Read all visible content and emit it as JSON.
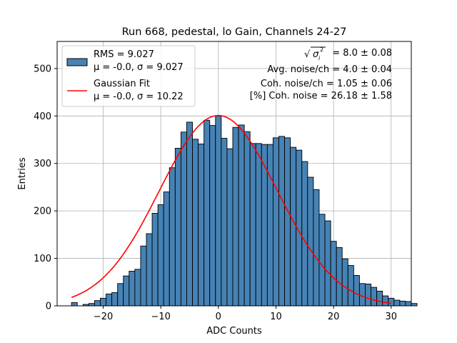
{
  "chart_data": {
    "type": "bar",
    "title": "Run 668, pedestal, lo Gain, Channels 24-27",
    "xlabel": "ADC Counts",
    "ylabel": "Entries",
    "xlim": [
      -28,
      33.5
    ],
    "ylim": [
      0,
      557
    ],
    "xticks": [
      -20,
      -10,
      0,
      10,
      20,
      30
    ],
    "yticks": [
      0,
      100,
      200,
      300,
      400,
      500
    ],
    "grid": true,
    "histogram": {
      "name": "RMS",
      "bin_width": 1,
      "bin_start": -25.5,
      "values": [
        7,
        0,
        3,
        5,
        11,
        16,
        25,
        28,
        47,
        63,
        73,
        77,
        126,
        152,
        195,
        213,
        240,
        291,
        332,
        366,
        387,
        351,
        341,
        391,
        380,
        400,
        353,
        331,
        376,
        381,
        367,
        342,
        342,
        340,
        340,
        354,
        357,
        354,
        334,
        328,
        304,
        271,
        245,
        193,
        179,
        136,
        123,
        99,
        85,
        64,
        47,
        46,
        39,
        31,
        21,
        16,
        12,
        10,
        9,
        5
      ]
    },
    "gaussian_fit": {
      "name": "Gaussian Fit",
      "mu": 0.0,
      "sigma": 10.22,
      "amplitude": 401,
      "x_range": [
        -25.5,
        30
      ]
    },
    "legend": [
      {
        "label_line1": "RMS = 9.027",
        "label_line2": "μ = -0.0, σ = 9.027",
        "type": "bar"
      },
      {
        "label_line1": "Gaussian Fit",
        "label_line2": "μ = -0.0, σ = 10.22",
        "type": "line"
      }
    ],
    "legend_position": "top-left",
    "annotations": {
      "sigma_sum": "= 8.0 ± 0.08",
      "avg_noise": "Avg. noise/ch = 4.0 ± 0.04",
      "coh_noise": "Coh. noise/ch = 1.05 ± 0.06",
      "pct_coh_noise": "[%] Coh. noise = 26.18 ± 1.58"
    }
  },
  "colors": {
    "bar_fill": "#4682b4",
    "bar_edge": "#000000",
    "fit_line": "#ff0000",
    "grid": "#b0b0b0"
  }
}
